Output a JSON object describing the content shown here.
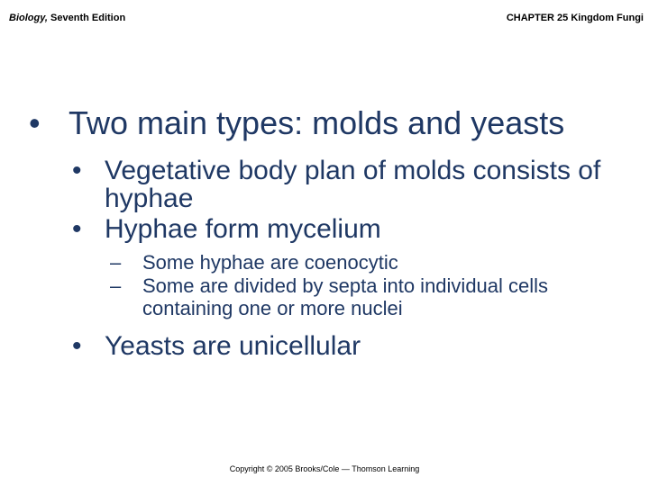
{
  "header": {
    "book_title": "Biology,",
    "edition": " Seventh Edition",
    "chapter": "CHAPTER 25 Kingdom Fungi"
  },
  "bullets": {
    "main": "Two main types: molds and yeasts",
    "sub1": "Vegetative body plan of molds consists of hyphae",
    "sub2": "Hyphae form mycelium",
    "sub2a": "Some hyphae are coenocytic",
    "sub2b": "Some are divided by septa into individual cells containing one or more nuclei",
    "sub3": "Yeasts are unicellular"
  },
  "footer": "Copyright © 2005 Brooks/Cole — Thomson Learning",
  "colors": {
    "text": "#1f3864",
    "background": "#ffffff"
  }
}
